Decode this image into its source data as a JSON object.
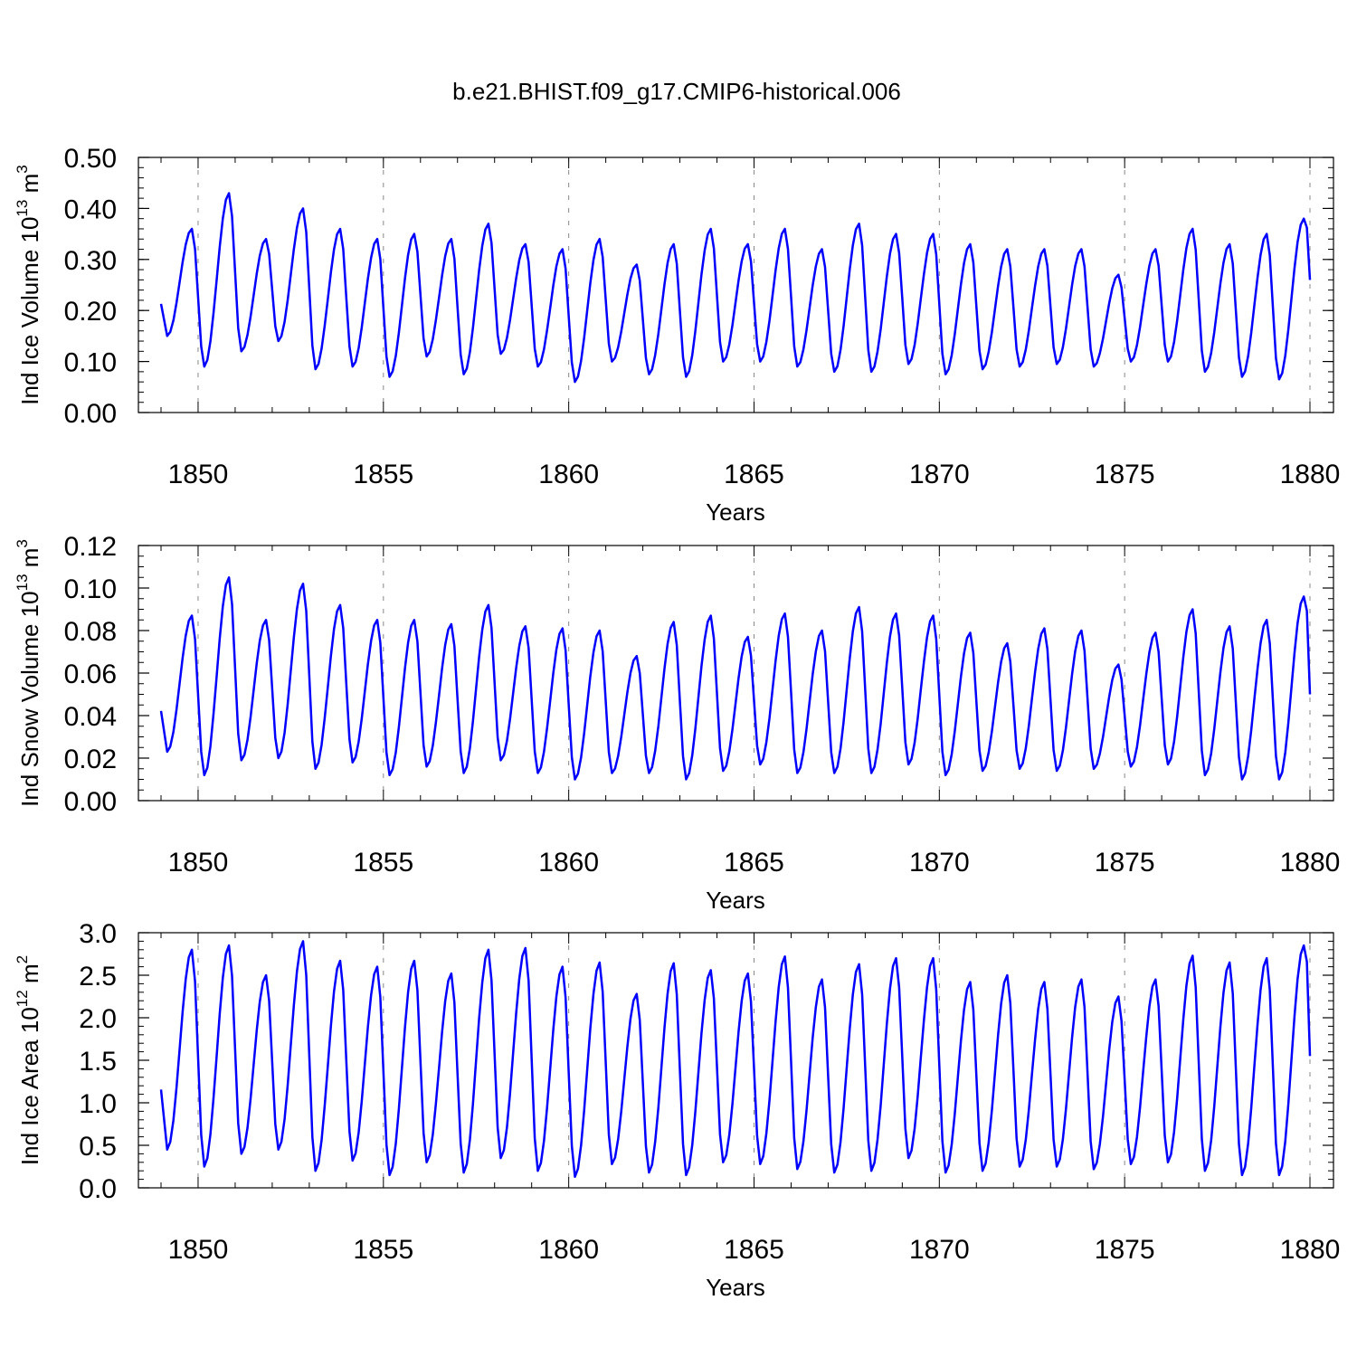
{
  "title": "b.e21.BHIST.f09_g17.CMIP6-historical.006",
  "colors": {
    "series": "#0000ff",
    "axes": "#000000",
    "grid": "#888888",
    "background": "#ffffff"
  },
  "chart_data": [
    {
      "type": "line",
      "name": "ice-volume",
      "ylabel": {
        "main": "Ind Ice Volume 10",
        "exp": "13",
        "unit": " m",
        "unit_exp": "3"
      },
      "xlabel": "Years",
      "xlim": [
        1849,
        1880
      ],
      "ylim": [
        0,
        0.5
      ],
      "xticks": [
        "1850",
        "1855",
        "1860",
        "1865",
        "1870",
        "1875",
        "1880"
      ],
      "yticks": [
        "0.00",
        "0.10",
        "0.20",
        "0.30",
        "0.40",
        "0.50"
      ],
      "ytick_values": [
        0,
        0.1,
        0.2,
        0.3,
        0.4,
        0.5
      ],
      "minor_y_step": 0.02,
      "grid": "dashed vertical at 5-year ticks",
      "series": [
        {
          "name": "Ind Ice Volume",
          "x_start": 1849.0,
          "x_step": 0.0833333,
          "peaks": [
            0.36,
            0.43,
            0.34,
            0.4,
            0.36,
            0.34,
            0.35,
            0.34,
            0.37,
            0.33,
            0.32,
            0.34,
            0.29,
            0.33,
            0.36,
            0.33,
            0.36,
            0.32,
            0.37,
            0.35,
            0.35,
            0.33,
            0.32,
            0.32,
            0.32,
            0.27,
            0.32,
            0.36,
            0.33,
            0.35,
            0.38
          ],
          "troughs": [
            0.15,
            0.09,
            0.12,
            0.14,
            0.085,
            0.09,
            0.07,
            0.11,
            0.075,
            0.115,
            0.09,
            0.06,
            0.1,
            0.075,
            0.07,
            0.1,
            0.1,
            0.09,
            0.08,
            0.08,
            0.095,
            0.075,
            0.085,
            0.09,
            0.095,
            0.09,
            0.1,
            0.1,
            0.08,
            0.07,
            0.065
          ],
          "end_value": 0.26
        }
      ]
    },
    {
      "type": "line",
      "name": "snow-volume",
      "ylabel": {
        "main": "Ind Snow Volume 10",
        "exp": "13",
        "unit": " m",
        "unit_exp": "3"
      },
      "xlabel": "Years",
      "xlim": [
        1849,
        1880
      ],
      "ylim": [
        0,
        0.12
      ],
      "xticks": [
        "1850",
        "1855",
        "1860",
        "1865",
        "1870",
        "1875",
        "1880"
      ],
      "yticks": [
        "0.00",
        "0.02",
        "0.04",
        "0.06",
        "0.08",
        "0.10",
        "0.12"
      ],
      "ytick_values": [
        0,
        0.02,
        0.04,
        0.06,
        0.08,
        0.1,
        0.12
      ],
      "minor_y_step": 0.005,
      "grid": "dashed vertical at 5-year ticks",
      "series": [
        {
          "name": "Ind Snow Volume",
          "x_start": 1849.0,
          "x_step": 0.0833333,
          "peaks": [
            0.087,
            0.105,
            0.085,
            0.102,
            0.092,
            0.085,
            0.085,
            0.083,
            0.092,
            0.082,
            0.081,
            0.08,
            0.068,
            0.084,
            0.087,
            0.077,
            0.088,
            0.08,
            0.091,
            0.088,
            0.087,
            0.079,
            0.074,
            0.081,
            0.08,
            0.064,
            0.079,
            0.09,
            0.082,
            0.085,
            0.096
          ],
          "troughs": [
            0.023,
            0.012,
            0.019,
            0.02,
            0.015,
            0.018,
            0.012,
            0.016,
            0.013,
            0.019,
            0.013,
            0.01,
            0.013,
            0.013,
            0.01,
            0.014,
            0.017,
            0.013,
            0.013,
            0.013,
            0.017,
            0.012,
            0.014,
            0.015,
            0.014,
            0.015,
            0.016,
            0.017,
            0.012,
            0.01,
            0.01
          ],
          "end_value": 0.05
        }
      ]
    },
    {
      "type": "line",
      "name": "ice-area",
      "ylabel": {
        "main": "Ind Ice Area 10",
        "exp": "12",
        "unit": " m",
        "unit_exp": "2"
      },
      "xlabel": "Years",
      "xlim": [
        1849,
        1880
      ],
      "ylim": [
        0,
        3.0
      ],
      "xticks": [
        "1850",
        "1855",
        "1860",
        "1865",
        "1870",
        "1875",
        "1880"
      ],
      "yticks": [
        "0.0",
        "0.5",
        "1.0",
        "1.5",
        "2.0",
        "2.5",
        "3.0"
      ],
      "ytick_values": [
        0,
        0.5,
        1.0,
        1.5,
        2.0,
        2.5,
        3.0
      ],
      "minor_y_step": 0.1,
      "grid": "dashed vertical at 5-year ticks",
      "series": [
        {
          "name": "Ind Ice Area",
          "x_start": 1849.0,
          "x_step": 0.0833333,
          "peaks": [
            2.8,
            2.85,
            2.5,
            2.9,
            2.67,
            2.6,
            2.67,
            2.52,
            2.8,
            2.82,
            2.6,
            2.65,
            2.28,
            2.64,
            2.56,
            2.52,
            2.72,
            2.45,
            2.63,
            2.7,
            2.7,
            2.42,
            2.5,
            2.42,
            2.45,
            2.25,
            2.45,
            2.73,
            2.65,
            2.7,
            2.85
          ],
          "troughs": [
            0.45,
            0.25,
            0.4,
            0.45,
            0.2,
            0.32,
            0.15,
            0.3,
            0.18,
            0.35,
            0.2,
            0.13,
            0.28,
            0.18,
            0.15,
            0.3,
            0.28,
            0.22,
            0.18,
            0.2,
            0.35,
            0.18,
            0.2,
            0.25,
            0.25,
            0.22,
            0.28,
            0.3,
            0.2,
            0.15,
            0.15
          ],
          "end_value": 1.55
        }
      ]
    }
  ]
}
